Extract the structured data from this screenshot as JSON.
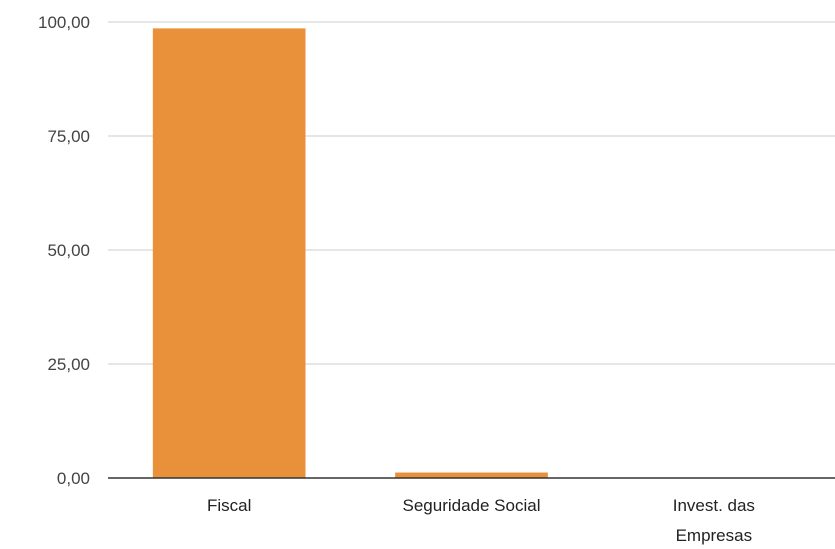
{
  "chart_data": {
    "type": "bar",
    "categories": [
      [
        "Fiscal"
      ],
      [
        "Seguridade Social"
      ],
      [
        "Invest. das",
        "Empresas"
      ]
    ],
    "values": [
      98.6,
      1.2,
      0.0
    ],
    "ylim": [
      0,
      100
    ],
    "yticks": [
      "0,00",
      "25,00",
      "50,00",
      "75,00",
      "100,00"
    ],
    "ytick_values": [
      0,
      25,
      50,
      75,
      100
    ],
    "grid": true,
    "legend": "none",
    "bar_color": "#e8913a"
  }
}
